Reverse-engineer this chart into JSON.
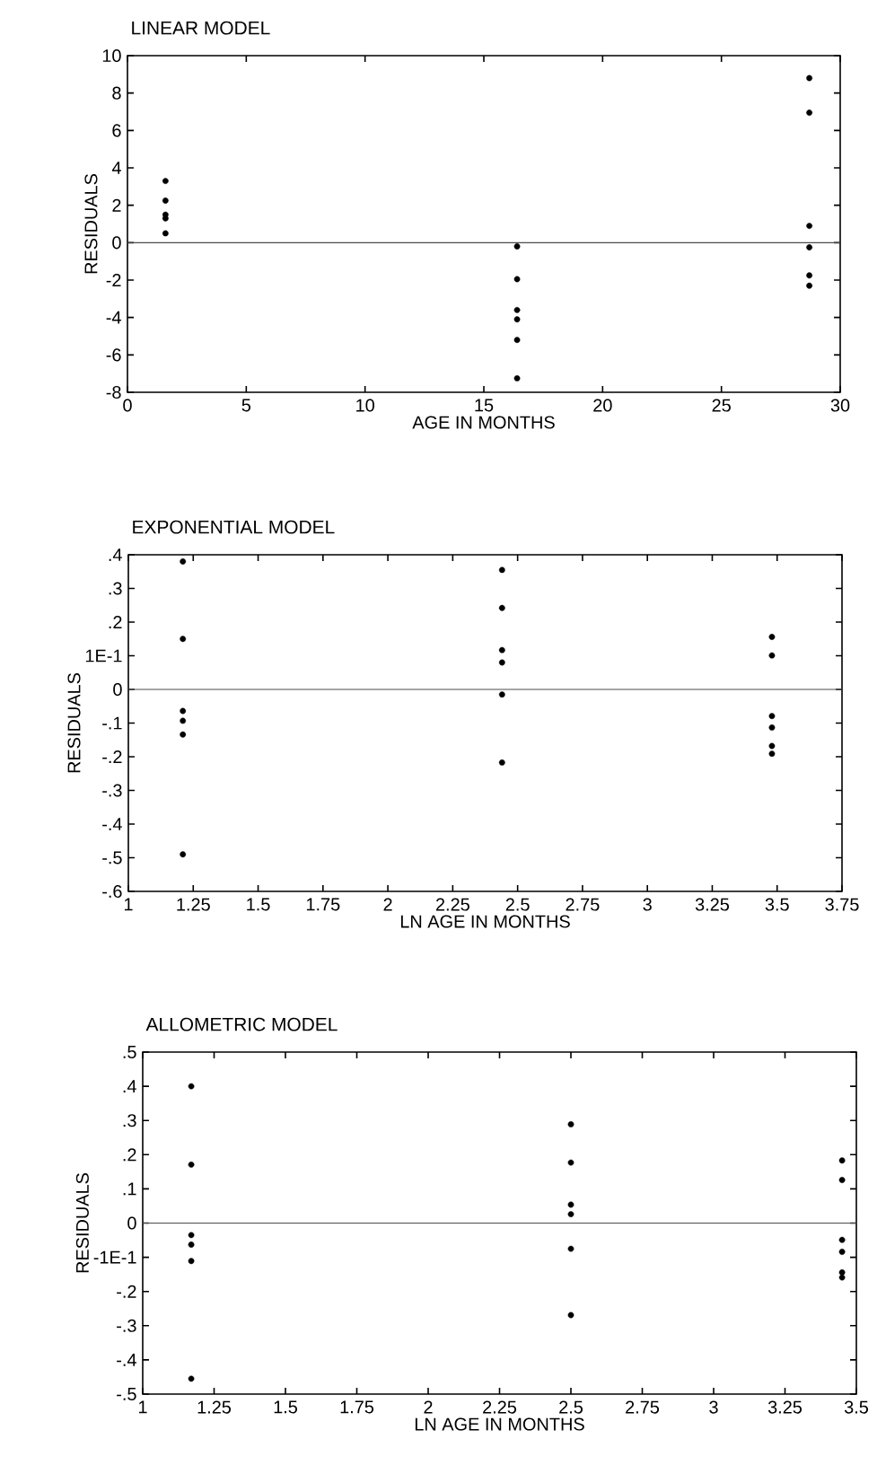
{
  "chart_data": [
    {
      "type": "scatter",
      "title": "LINEAR MODEL",
      "xlabel": "AGE IN MONTHS",
      "ylabel": "RESIDUALS",
      "marker": "circle",
      "xlim": [
        0,
        30
      ],
      "ylim": [
        -8,
        10
      ],
      "xticks": [
        0,
        5,
        10,
        15,
        20,
        25,
        30
      ],
      "yticks": [
        -8,
        -6,
        -4,
        -2,
        0,
        2,
        4,
        6,
        8,
        10
      ],
      "ref_lines": [
        {
          "axis": "y",
          "value": 0
        }
      ],
      "series": [
        {
          "color": "#000000",
          "x": [
            1.6,
            1.6,
            1.6,
            1.6,
            1.6,
            16.4,
            16.4,
            16.4,
            16.4,
            16.4,
            16.4,
            28.7,
            28.7,
            28.7,
            28.7,
            28.7,
            28.7
          ],
          "values": [
            3.3,
            2.25,
            1.5,
            1.3,
            0.5,
            -0.2,
            -1.95,
            -3.6,
            -4.1,
            -5.2,
            -7.25,
            8.8,
            6.95,
            0.9,
            -0.25,
            -1.75,
            -2.3
          ]
        }
      ]
    },
    {
      "type": "scatter",
      "title": "EXPONENTIAL MODEL",
      "xlabel": "LN AGE IN MONTHS",
      "ylabel": "RESIDUALS",
      "marker": "circle",
      "xlim": [
        1,
        3.75
      ],
      "ylim": [
        -0.6,
        0.4
      ],
      "xticks": [
        1,
        1.25,
        1.5,
        1.75,
        2,
        2.25,
        2.5,
        2.75,
        3,
        3.25,
        3.5,
        3.75
      ],
      "yticks": [
        {
          "value": -0.6,
          "label": "-.6"
        },
        {
          "value": -0.5,
          "label": "-.5"
        },
        {
          "value": -0.4,
          "label": "-.4"
        },
        {
          "value": -0.3,
          "label": "-.3"
        },
        {
          "value": -0.2,
          "label": "-.2"
        },
        {
          "value": -0.1,
          "label": "-.1"
        },
        0,
        {
          "value": 0.1,
          "label": "1E-1"
        },
        {
          "value": 0.2,
          "label": ".2"
        },
        {
          "value": 0.3,
          "label": ".3"
        },
        {
          "value": 0.4,
          "label": ".4"
        }
      ],
      "ref_lines": [
        {
          "axis": "y",
          "value": 0
        }
      ],
      "series": [
        {
          "color": "#000000",
          "x": [
            1.21,
            1.21,
            1.21,
            1.21,
            1.21,
            1.21,
            2.44,
            2.44,
            2.44,
            2.44,
            2.44,
            2.44,
            3.48,
            3.48,
            3.48,
            3.48,
            3.48,
            3.48
          ],
          "values": [
            0.38,
            0.15,
            -0.064,
            -0.093,
            -0.134,
            -0.49,
            0.355,
            0.242,
            0.117,
            0.08,
            -0.015,
            -0.217,
            0.156,
            0.101,
            -0.079,
            -0.113,
            -0.168,
            -0.191
          ]
        }
      ]
    },
    {
      "type": "scatter",
      "title": "ALLOMETRIC MODEL",
      "xlabel": "LN AGE IN MONTHS",
      "ylabel": "RESIDUALS",
      "marker": "circle",
      "xlim": [
        1,
        3.5
      ],
      "ylim": [
        -0.5,
        0.5
      ],
      "xticks": [
        1,
        1.25,
        1.5,
        1.75,
        2,
        2.25,
        2.5,
        2.75,
        3,
        3.25,
        3.5
      ],
      "yticks": [
        {
          "value": -0.5,
          "label": "-.5"
        },
        {
          "value": -0.4,
          "label": "-.4"
        },
        {
          "value": -0.3,
          "label": "-.3"
        },
        {
          "value": -0.2,
          "label": "-.2"
        },
        {
          "value": -0.1,
          "label": "-1E-1"
        },
        0,
        {
          "value": 0.1,
          "label": ".1"
        },
        {
          "value": 0.2,
          "label": ".2"
        },
        {
          "value": 0.3,
          "label": ".3"
        },
        {
          "value": 0.4,
          "label": ".4"
        },
        {
          "value": 0.5,
          "label": ".5"
        }
      ],
      "ref_lines": [
        {
          "axis": "y",
          "value": 0
        }
      ],
      "series": [
        {
          "color": "#000000",
          "x": [
            1.17,
            1.17,
            1.17,
            1.17,
            1.17,
            1.17,
            2.5,
            2.5,
            2.5,
            2.5,
            2.5,
            2.5,
            3.45,
            3.45,
            3.45,
            3.45,
            3.45,
            3.45
          ],
          "values": [
            0.4,
            0.171,
            -0.035,
            -0.063,
            -0.111,
            -0.455,
            0.289,
            0.177,
            0.054,
            0.026,
            -0.075,
            -0.269,
            0.183,
            0.126,
            -0.049,
            -0.084,
            -0.144,
            -0.159
          ]
        }
      ]
    }
  ]
}
